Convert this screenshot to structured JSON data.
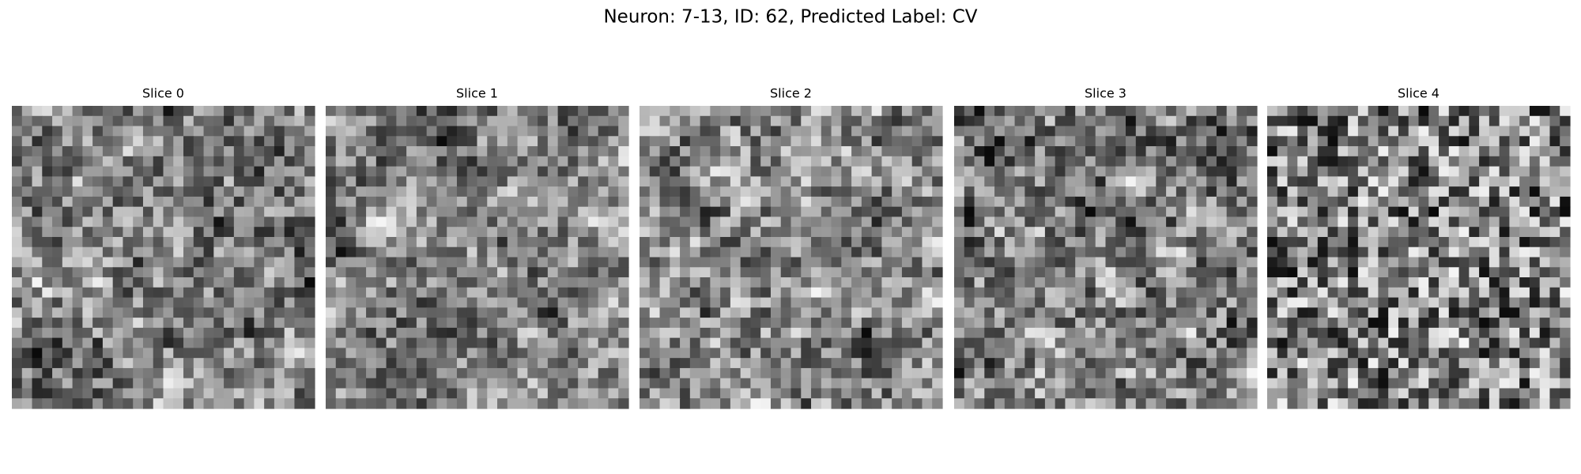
{
  "header": {
    "title": "Neuron: 7-13, ID: 62, Predicted Label: CV"
  },
  "panels": [
    {
      "title": "Slice 0"
    },
    {
      "title": "Slice 1"
    },
    {
      "title": "Slice 2"
    },
    {
      "title": "Slice 3"
    },
    {
      "title": "Slice 4"
    }
  ]
}
